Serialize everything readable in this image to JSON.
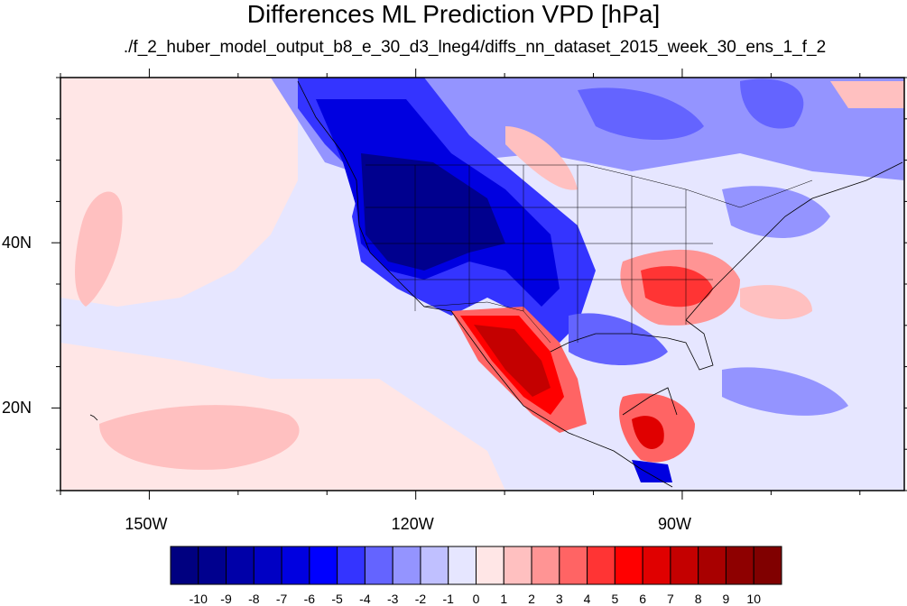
{
  "title": "Differences ML Prediction VPD [hPa]",
  "subtitle": "./f_2_huber_model_output_b8_e_30_d3_lneg4/diffs_nn_dataset_2015_week_30_ens_1_f_2",
  "map": {
    "projection": "cylindrical equidistant",
    "lon_range": [
      -160,
      -65
    ],
    "lat_range": [
      10,
      60
    ],
    "lon_ticks": [
      {
        "lon": -150,
        "label": "150W"
      },
      {
        "lon": -120,
        "label": "120W"
      },
      {
        "lon": -90,
        "label": "90W"
      }
    ],
    "lat_ticks": [
      {
        "lat": 40,
        "label": "40N"
      },
      {
        "lat": 20,
        "label": "20N"
      }
    ]
  },
  "colorbar": {
    "labels": [
      "-10",
      "-9",
      "-8",
      "-7",
      "-6",
      "-5",
      "-4",
      "-3",
      "-2",
      "-1",
      "0",
      "1",
      "2",
      "3",
      "4",
      "5",
      "6",
      "7",
      "8",
      "9",
      "10"
    ],
    "colors": [
      "#000080",
      "#00008e",
      "#0000a8",
      "#0000c4",
      "#0000e0",
      "#0000ff",
      "#3434ff",
      "#6464ff",
      "#9494ff",
      "#c0c0ff",
      "#e6e6ff",
      "#ffe6e6",
      "#ffc0c0",
      "#ff9494",
      "#ff6464",
      "#ff3434",
      "#ff0000",
      "#e00000",
      "#c40000",
      "#a80000",
      "#8e0000",
      "#800000"
    ]
  },
  "colors": {
    "ocean_background": "#e6e6ff",
    "negative_strong": "#00008e",
    "positive_strong": "#c40000"
  }
}
